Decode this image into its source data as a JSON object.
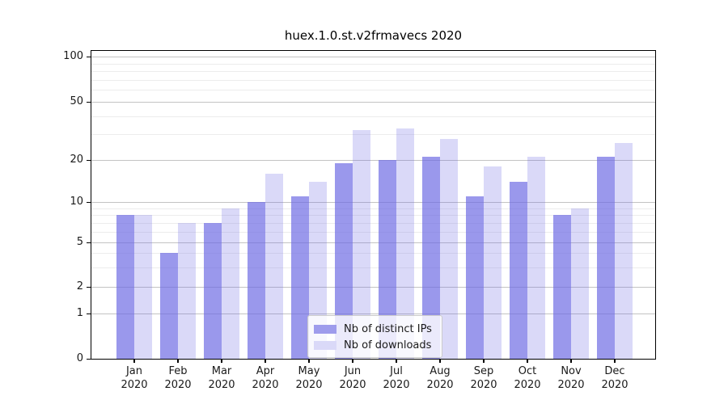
{
  "title": "huex.1.0.st.v2frmavecs 2020",
  "chart_data": {
    "type": "bar",
    "title": "huex.1.0.st.v2frmavecs 2020",
    "categories": [
      "Jan 2020",
      "Feb 2020",
      "Mar 2020",
      "Apr 2020",
      "May 2020",
      "Jun 2020",
      "Jul 2020",
      "Aug 2020",
      "Sep 2020",
      "Oct 2020",
      "Nov 2020",
      "Dec 2020"
    ],
    "x_tick_labels": [
      {
        "month": "Jan",
        "year": "2020"
      },
      {
        "month": "Feb",
        "year": "2020"
      },
      {
        "month": "Mar",
        "year": "2020"
      },
      {
        "month": "Apr",
        "year": "2020"
      },
      {
        "month": "May",
        "year": "2020"
      },
      {
        "month": "Jun",
        "year": "2020"
      },
      {
        "month": "Jul",
        "year": "2020"
      },
      {
        "month": "Aug",
        "year": "2020"
      },
      {
        "month": "Sep",
        "year": "2020"
      },
      {
        "month": "Oct",
        "year": "2020"
      },
      {
        "month": "Nov",
        "year": "2020"
      },
      {
        "month": "Dec",
        "year": "2020"
      }
    ],
    "series": [
      {
        "name": "Nb of distinct IPs",
        "color": "#9e9cec",
        "values": [
          8,
          4,
          7,
          10,
          11,
          19,
          20,
          21,
          11,
          14,
          8,
          21
        ]
      },
      {
        "name": "Nb of downloads",
        "color": "#dad9f8",
        "values": [
          8,
          7,
          9,
          16,
          14,
          32,
          33,
          28,
          18,
          21,
          9,
          26
        ]
      }
    ],
    "xlabel": "",
    "ylabel": "",
    "yscale": "symlog",
    "ylim": [
      0,
      110
    ],
    "yticks": [
      0,
      1,
      2,
      5,
      10,
      20,
      50,
      100
    ],
    "yticks_minor": [
      3,
      4,
      6,
      7,
      8,
      9,
      30,
      40,
      60,
      70,
      80,
      90
    ],
    "grid": "horizontal major+minor",
    "legend_position": "lower center"
  },
  "colors": {
    "bar_distinct_ips": "rgba(106,103,227,0.68)",
    "bar_downloads": "rgba(106,103,227,0.25)",
    "swatch_distinct_ips": "#9e9cec",
    "swatch_downloads": "#dad9f8",
    "grid_major": "#c3c3c3",
    "grid_minor": "#ececec",
    "axis": "#000000",
    "text": "#1a1a1a"
  }
}
